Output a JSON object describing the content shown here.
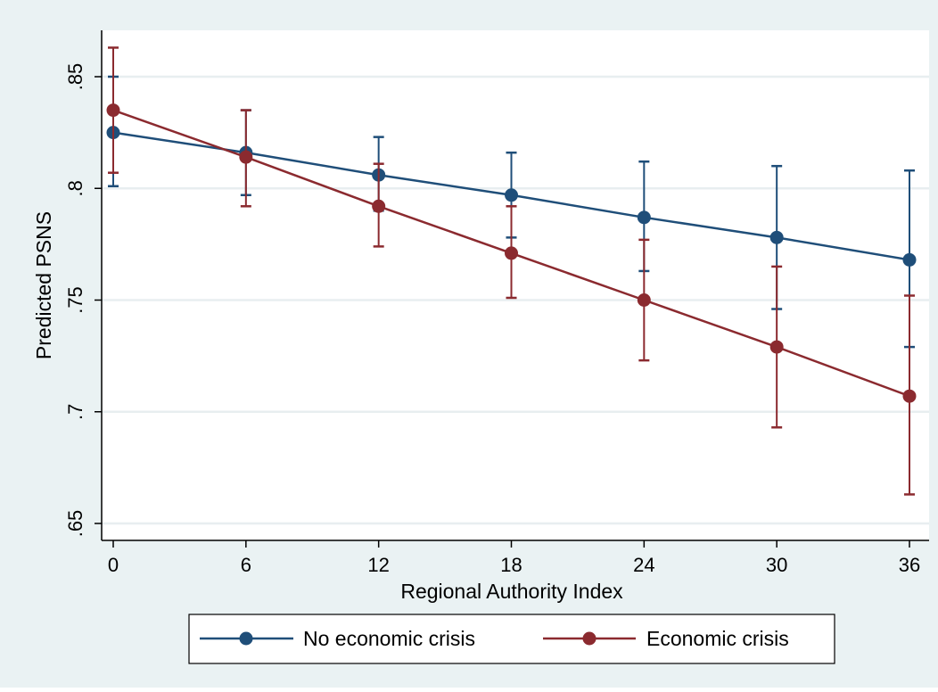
{
  "chart_data": {
    "type": "line",
    "title": "",
    "xlabel": "Regional Authority Index",
    "ylabel": "Predicted PSNS",
    "x": [
      0,
      6,
      12,
      18,
      24,
      30,
      36
    ],
    "xticks": [
      "0",
      "6",
      "12",
      "18",
      "24",
      "30",
      "36"
    ],
    "xlim": [
      0,
      36
    ],
    "yticks": [
      {
        "value": 0.65,
        "label": ".65"
      },
      {
        "value": 0.7,
        "label": ".7"
      },
      {
        "value": 0.75,
        "label": ".75"
      },
      {
        "value": 0.8,
        "label": ".8"
      },
      {
        "value": 0.85,
        "label": ".85"
      }
    ],
    "ylim": [
      0.648,
      0.868
    ],
    "grid": true,
    "legend_position": "bottom",
    "series": [
      {
        "name": "No economic crisis",
        "color": "#1f4e79",
        "values": [
          0.825,
          0.816,
          0.806,
          0.797,
          0.787,
          0.778,
          0.768
        ],
        "ci_low": [
          0.801,
          0.797,
          0.79,
          0.778,
          0.763,
          0.746,
          0.729
        ],
        "ci_high": [
          0.85,
          0.835,
          0.823,
          0.816,
          0.812,
          0.81,
          0.808
        ]
      },
      {
        "name": "Economic crisis",
        "color": "#8b2a2f",
        "values": [
          0.835,
          0.814,
          0.792,
          0.771,
          0.75,
          0.729,
          0.707
        ],
        "ci_low": [
          0.807,
          0.792,
          0.774,
          0.751,
          0.723,
          0.693,
          0.663
        ],
        "ci_high": [
          0.863,
          0.835,
          0.811,
          0.792,
          0.777,
          0.765,
          0.752
        ]
      }
    ]
  },
  "colors": {
    "outer_background": "#eaf2f3",
    "plot_background": "#ffffff",
    "grid": "#e8eef0",
    "axis": "#000000"
  }
}
